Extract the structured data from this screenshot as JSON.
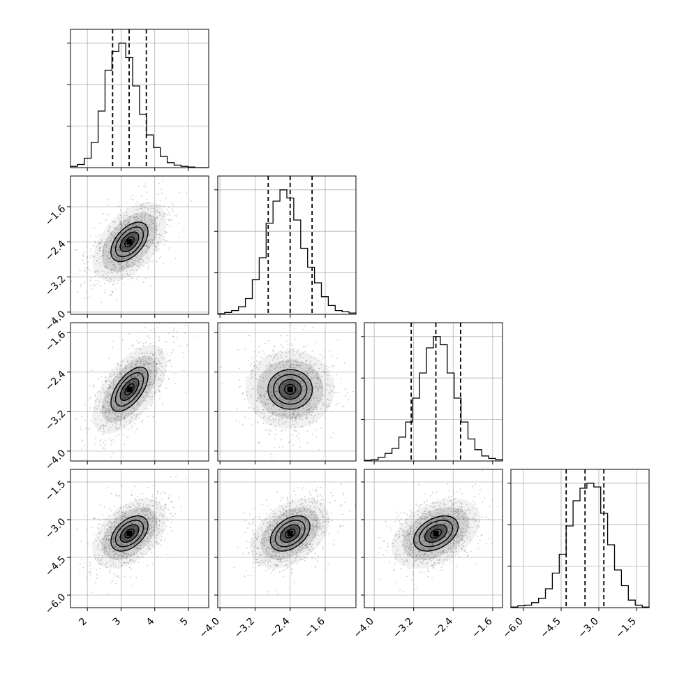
{
  "chart_data": {
    "type": "corner",
    "parameters": [
      {
        "id": "p0",
        "xticks": [
          "2",
          "3",
          "4",
          "5"
        ],
        "xtick_values": [
          2,
          3,
          4,
          5
        ],
        "range": [
          1.5,
          5.6
        ]
      },
      {
        "id": "p1",
        "xticks": [
          "−4.0",
          "−3.2",
          "−2.4",
          "−1.6"
        ],
        "xtick_values": [
          -4.0,
          -3.2,
          -2.4,
          -1.6
        ],
        "range": [
          -4.05,
          -0.9
        ]
      },
      {
        "id": "p2",
        "xticks": [
          "−4.0",
          "−3.2",
          "−2.4",
          "−1.6"
        ],
        "xtick_values": [
          -4.0,
          -3.2,
          -2.4,
          -1.6
        ],
        "range": [
          -4.2,
          -1.4
        ]
      },
      {
        "id": "p3",
        "xticks": [
          "−6.0",
          "−4.5",
          "−3.0",
          "−1.5"
        ],
        "xtick_values": [
          -6.0,
          -4.5,
          -3.0,
          -1.5
        ],
        "range": [
          -6.5,
          -1.0
        ]
      }
    ],
    "row_ticks": [
      null,
      {
        "labels": [
          "−1.6",
          "−2.4",
          "−3.2",
          "−4.0"
        ],
        "values": [
          -1.6,
          -2.4,
          -3.2,
          -4.0
        ]
      },
      {
        "labels": [
          "−1.6",
          "−2.4",
          "−3.2",
          "−4.0"
        ],
        "values": [
          -1.6,
          -2.4,
          -3.2,
          -4.0
        ]
      },
      {
        "labels": [
          "−1.5",
          "−3.0",
          "−4.5",
          "−6.0"
        ],
        "values": [
          -1.5,
          -3.0,
          -4.5,
          -6.0
        ]
      }
    ],
    "histograms": [
      {
        "counts": [
          2,
          5,
          15,
          40,
          90,
          155,
          185,
          198,
          175,
          130,
          85,
          52,
          32,
          18,
          8,
          4,
          2,
          1,
          0,
          0
        ],
        "quantiles": [
          2.75,
          3.24,
          3.75
        ]
      },
      {
        "counts": [
          1,
          3,
          6,
          12,
          25,
          55,
          90,
          145,
          180,
          198,
          185,
          150,
          105,
          75,
          50,
          28,
          14,
          6,
          4,
          2
        ],
        "quantiles": [
          -2.9,
          -2.4,
          -1.9
        ]
      },
      {
        "counts": [
          1,
          2,
          6,
          12,
          20,
          38,
          62,
          100,
          140,
          180,
          198,
          185,
          140,
          100,
          62,
          35,
          18,
          8,
          4,
          2
        ],
        "quantiles": [
          -3.25,
          -2.75,
          -2.25
        ]
      },
      {
        "counts": [
          1,
          3,
          4,
          8,
          15,
          30,
          55,
          85,
          130,
          170,
          190,
          198,
          192,
          150,
          100,
          60,
          35,
          12,
          4,
          1
        ],
        "quantiles": [
          -4.3,
          -3.55,
          -2.8
        ]
      }
    ],
    "pairs": [
      {
        "row": 1,
        "col": 0,
        "mean": [
          3.25,
          -2.4
        ],
        "sd": [
          0.55,
          0.45
        ],
        "corr": 0.5
      },
      {
        "row": 2,
        "col": 0,
        "mean": [
          3.25,
          -2.75
        ],
        "sd": [
          0.55,
          0.45
        ],
        "corr": 0.6
      },
      {
        "row": 2,
        "col": 1,
        "mean": [
          -2.4,
          -2.75
        ],
        "sd": [
          0.45,
          0.45
        ],
        "corr": 0.0
      },
      {
        "row": 3,
        "col": 0,
        "mean": [
          3.25,
          -3.55
        ],
        "sd": [
          0.55,
          0.7
        ],
        "corr": 0.45
      },
      {
        "row": 3,
        "col": 1,
        "mean": [
          -2.4,
          -3.55
        ],
        "sd": [
          0.45,
          0.7
        ],
        "corr": 0.4
      },
      {
        "row": 3,
        "col": 2,
        "mean": [
          -2.75,
          -3.55
        ],
        "sd": [
          0.45,
          0.7
        ],
        "corr": 0.4
      }
    ],
    "contour_levels": [
      0.5,
      1.0,
      1.5,
      2.0
    ],
    "quantile_style": "dashed",
    "grid": true,
    "colors": {
      "line": "#000000",
      "points": "#9a9a9a",
      "grid": "#b0b0b0",
      "hist_fill": "#000000"
    }
  }
}
